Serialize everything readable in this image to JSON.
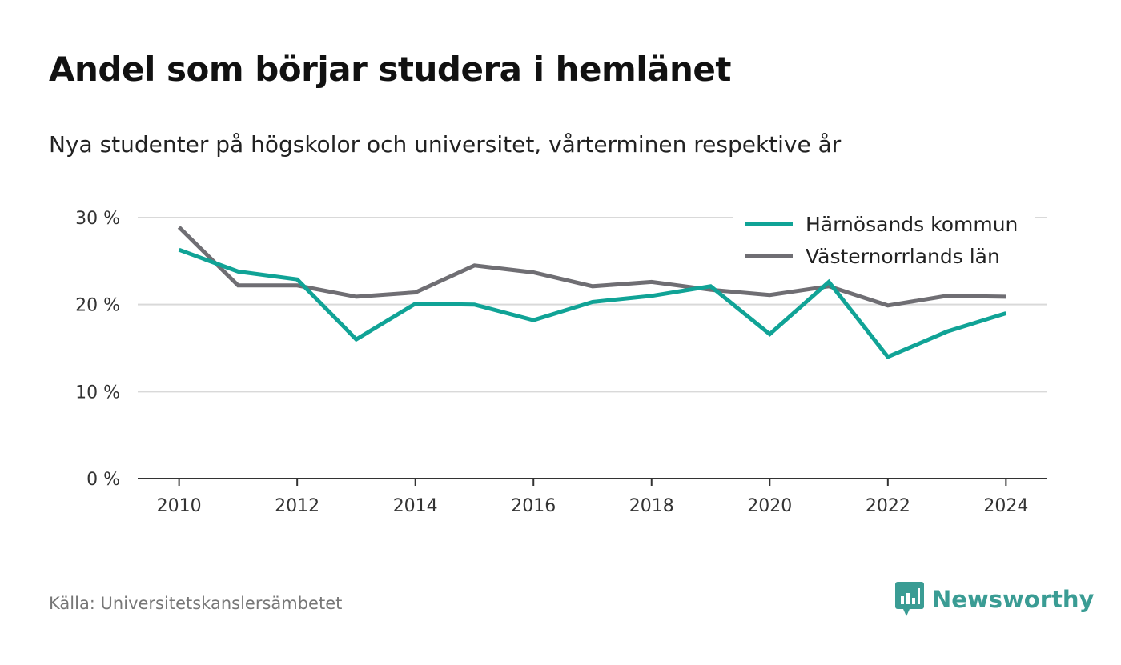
{
  "chart_data": {
    "type": "line",
    "title": "Andel som börjar studera i hemlänet",
    "subtitle": "Nya studenter på högskolor och universitet, vårterminen respektive år",
    "x": [
      2010,
      2011,
      2012,
      2013,
      2014,
      2015,
      2016,
      2017,
      2018,
      2019,
      2020,
      2021,
      2022,
      2023,
      2024
    ],
    "x_ticks": [
      2010,
      2012,
      2014,
      2016,
      2018,
      2020,
      2022,
      2024
    ],
    "y_ticks": [
      0,
      10,
      20,
      30
    ],
    "y_tick_labels": [
      "0 %",
      "10 %",
      "20 %",
      "30 %"
    ],
    "ylim": [
      0,
      30
    ],
    "xlim": [
      2009.3,
      2024.7
    ],
    "grid": true,
    "legend_position": "top-right",
    "series": [
      {
        "name": "Härnösands kommun",
        "color": "#10a396",
        "values": [
          26.3,
          23.8,
          22.9,
          16.0,
          20.1,
          20.0,
          18.2,
          20.3,
          21.0,
          22.1,
          16.6,
          22.6,
          14.0,
          16.9,
          19.0
        ]
      },
      {
        "name": "Västernorrlands län",
        "color": "#6f6e73",
        "values": [
          28.9,
          22.2,
          22.2,
          20.9,
          21.4,
          24.5,
          23.7,
          22.1,
          22.6,
          21.7,
          21.1,
          22.1,
          19.9,
          21.0,
          20.9
        ]
      }
    ]
  },
  "footer": {
    "source": "Källa: Universitetskanslersämbetet",
    "brand": "Newsworthy",
    "brand_color": "#3a9c94",
    "brand_icon": "bar-chart-speech-bubble-icon"
  }
}
